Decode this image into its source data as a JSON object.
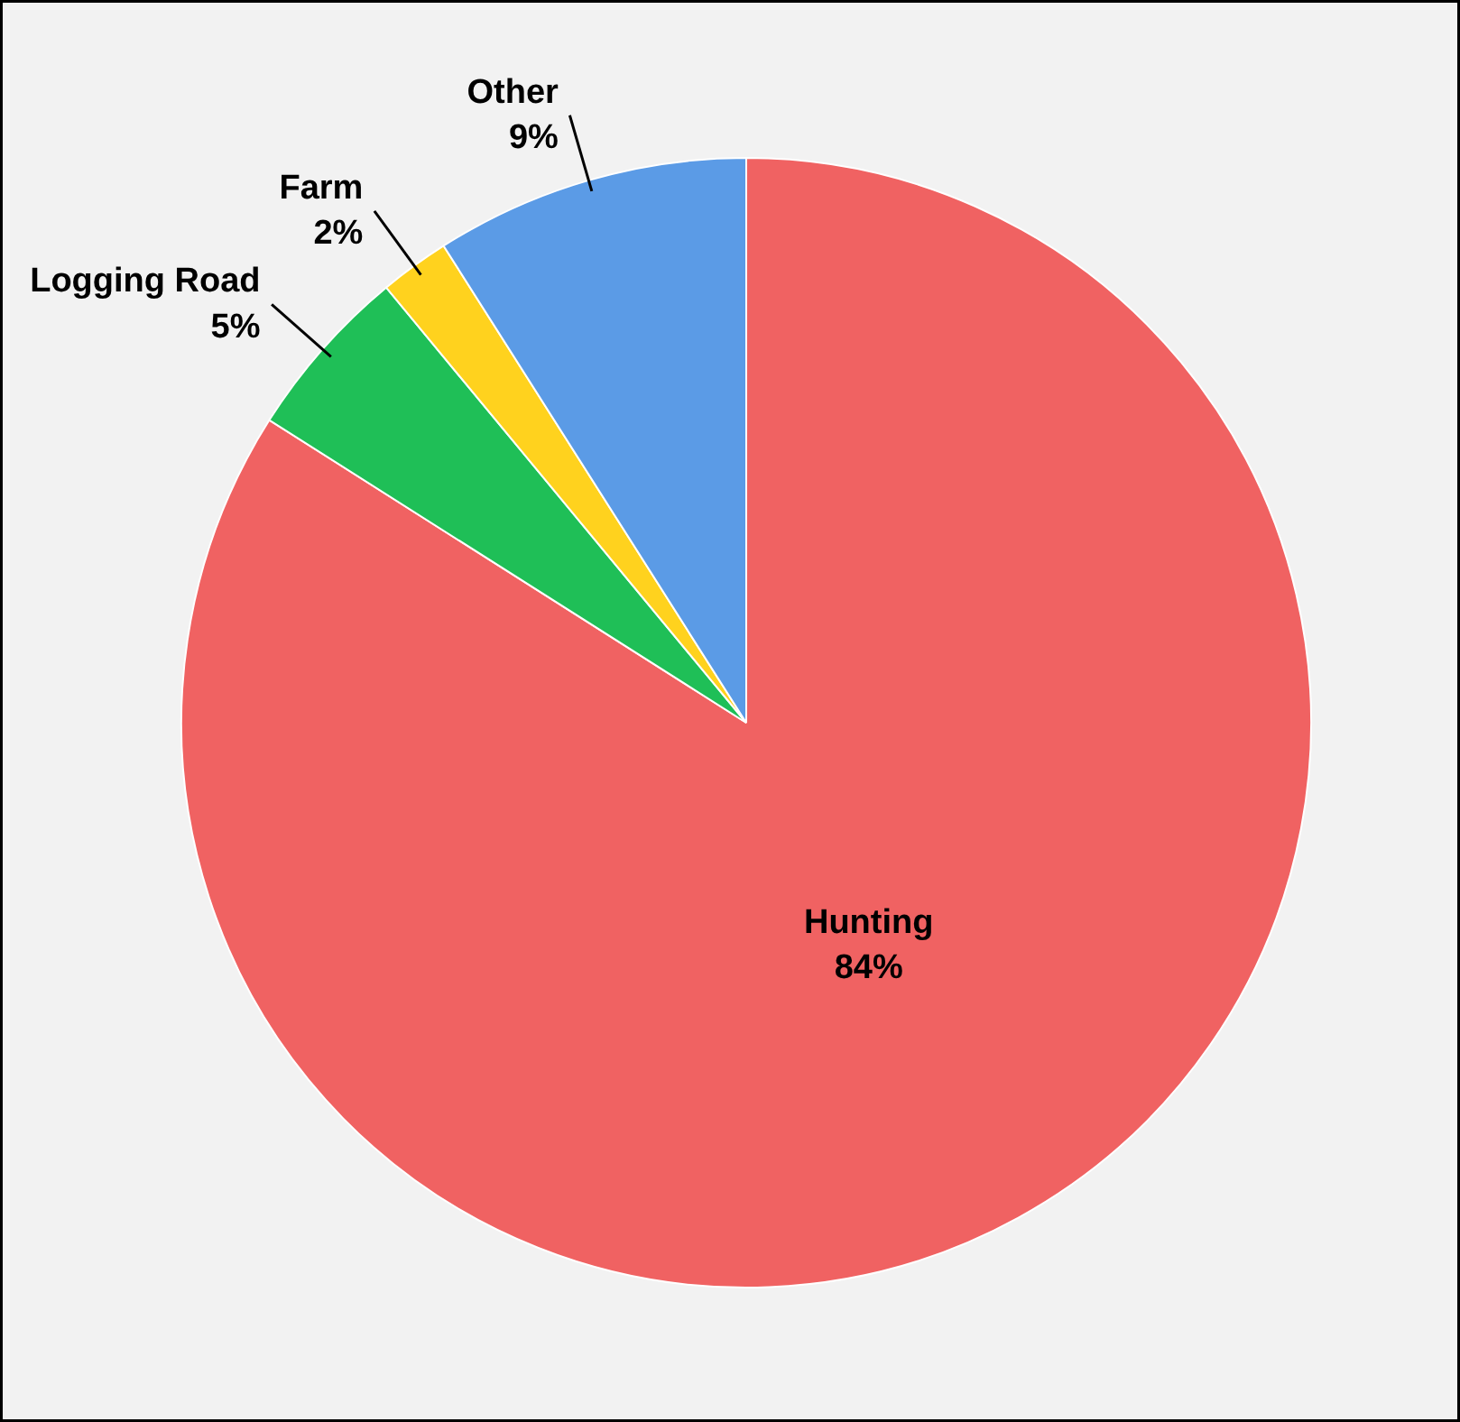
{
  "chart_data": {
    "type": "pie",
    "categories": [
      "Hunting",
      "Logging Road",
      "Farm",
      "Other"
    ],
    "values": [
      84,
      5,
      2,
      9
    ],
    "colors": [
      "#f06262",
      "#1fbf57",
      "#ffd21e",
      "#5b9be6"
    ],
    "value_labels": [
      "84%",
      "5%",
      "2%",
      "9%"
    ]
  }
}
